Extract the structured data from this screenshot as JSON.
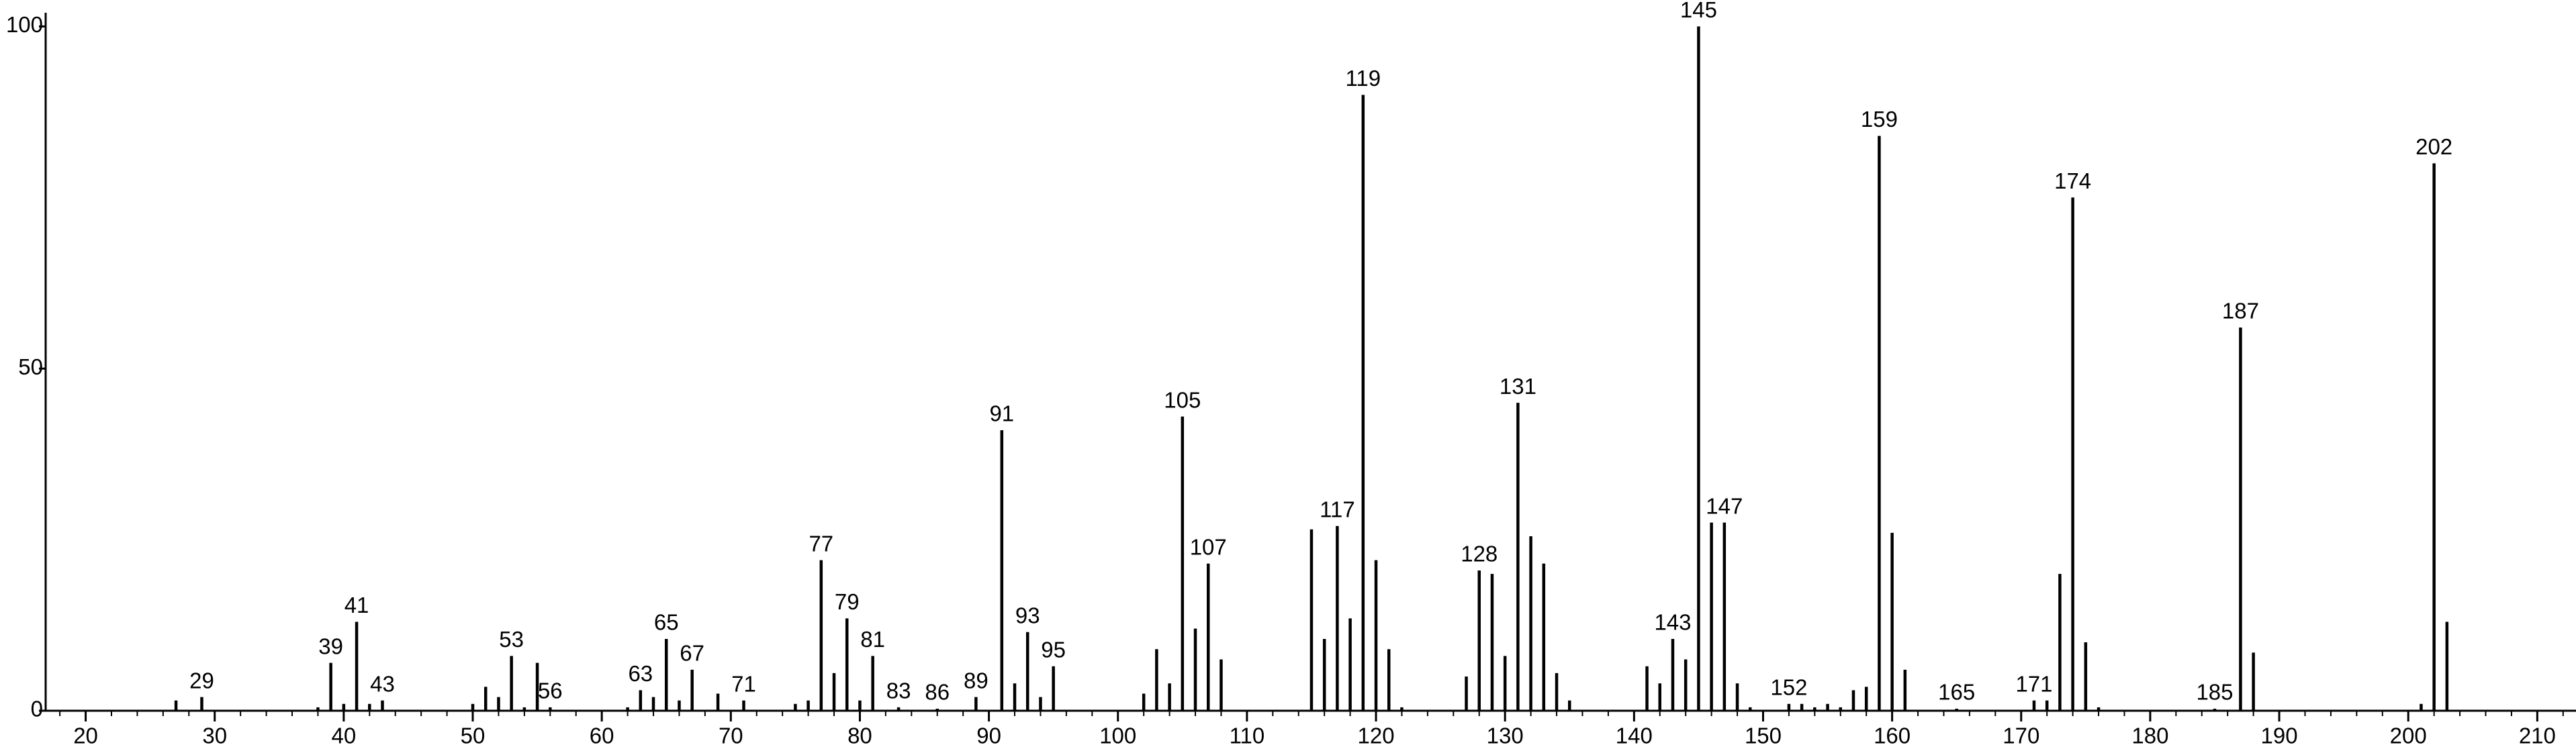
{
  "chart_data": {
    "type": "spectrum",
    "color": "#000000",
    "x": [
      27,
      29,
      38,
      39,
      40,
      41,
      42,
      43,
      50,
      51,
      52,
      53,
      54,
      55,
      56,
      62,
      63,
      64,
      65,
      66,
      67,
      69,
      71,
      75,
      76,
      77,
      78,
      79,
      80,
      81,
      83,
      86,
      89,
      91,
      92,
      93,
      94,
      95,
      102,
      103,
      104,
      105,
      106,
      107,
      108,
      115,
      116,
      117,
      118,
      119,
      120,
      121,
      122,
      127,
      128,
      129,
      130,
      131,
      132,
      133,
      134,
      135,
      141,
      142,
      143,
      144,
      145,
      146,
      147,
      148,
      149,
      152,
      153,
      154,
      155,
      156,
      157,
      158,
      159,
      160,
      161,
      165,
      171,
      172,
      173,
      174,
      175,
      176,
      185,
      187,
      188,
      201,
      202,
      203
    ],
    "values": [
      1.5,
      2,
      0.5,
      7,
      1,
      13,
      1,
      1.5,
      1,
      3.5,
      2,
      8,
      0.5,
      7,
      0.5,
      0.5,
      3,
      2,
      10.5,
      1.5,
      6,
      2.5,
      1.5,
      1,
      1.5,
      22,
      5.5,
      13.5,
      1.5,
      8,
      0.5,
      0.3,
      2,
      41,
      4,
      11.5,
      2,
      6.5,
      2.5,
      9,
      4,
      43,
      12,
      21.5,
      7.5,
      26.5,
      10.5,
      27,
      13.5,
      90,
      22,
      9,
      0.5,
      5,
      20.5,
      20,
      8,
      45,
      25.5,
      21.5,
      5.5,
      1.5,
      6.5,
      4,
      10.5,
      7.5,
      100,
      27.5,
      27.5,
      4,
      0.5,
      1,
      1,
      0.5,
      1,
      0.5,
      3,
      3.5,
      84,
      26,
      6,
      0.3,
      1.5,
      1.5,
      20,
      75,
      10,
      0.5,
      0.3,
      56,
      8.5,
      1,
      80,
      13
    ],
    "peak_labels": [
      null,
      29,
      null,
      39,
      null,
      41,
      null,
      43,
      null,
      null,
      null,
      53,
      null,
      null,
      56,
      null,
      63,
      null,
      65,
      null,
      67,
      null,
      71,
      null,
      null,
      77,
      null,
      79,
      null,
      81,
      83,
      86,
      89,
      91,
      null,
      93,
      null,
      95,
      null,
      null,
      null,
      105,
      null,
      107,
      null,
      null,
      null,
      117,
      null,
      119,
      null,
      null,
      null,
      null,
      128,
      null,
      null,
      131,
      null,
      null,
      null,
      null,
      null,
      null,
      143,
      null,
      145,
      null,
      147,
      null,
      null,
      152,
      null,
      null,
      null,
      null,
      null,
      null,
      159,
      null,
      null,
      165,
      171,
      null,
      null,
      174,
      null,
      null,
      185,
      187,
      null,
      null,
      202,
      null
    ],
    "xlim": [
      16.9,
      213
    ],
    "xticks": [
      20,
      30,
      40,
      50,
      60,
      70,
      80,
      90,
      100,
      110,
      120,
      130,
      140,
      150,
      160,
      170,
      180,
      190,
      200,
      210
    ],
    "xminorticks": [
      18,
      20,
      22,
      24,
      26,
      28,
      30,
      32,
      34,
      36,
      38,
      40,
      42,
      44,
      46,
      48,
      50,
      52,
      54,
      56,
      58,
      60,
      62,
      64,
      66,
      68,
      70,
      72,
      74,
      76,
      78,
      80,
      82,
      84,
      86,
      88,
      90,
      92,
      94,
      96,
      98,
      100,
      102,
      104,
      106,
      108,
      110,
      112,
      114,
      116,
      118,
      120,
      122,
      124,
      126,
      128,
      130,
      132,
      134,
      136,
      138,
      140,
      142,
      144,
      146,
      148,
      150,
      152,
      154,
      156,
      158,
      160,
      162,
      164,
      166,
      168,
      170,
      172,
      174,
      176,
      178,
      180,
      182,
      184,
      186,
      188,
      190,
      192,
      194,
      196,
      198,
      200,
      202,
      204,
      206,
      208,
      210,
      212
    ],
    "ylim": [
      0,
      102
    ],
    "yticks": [
      0,
      50,
      100
    ]
  }
}
